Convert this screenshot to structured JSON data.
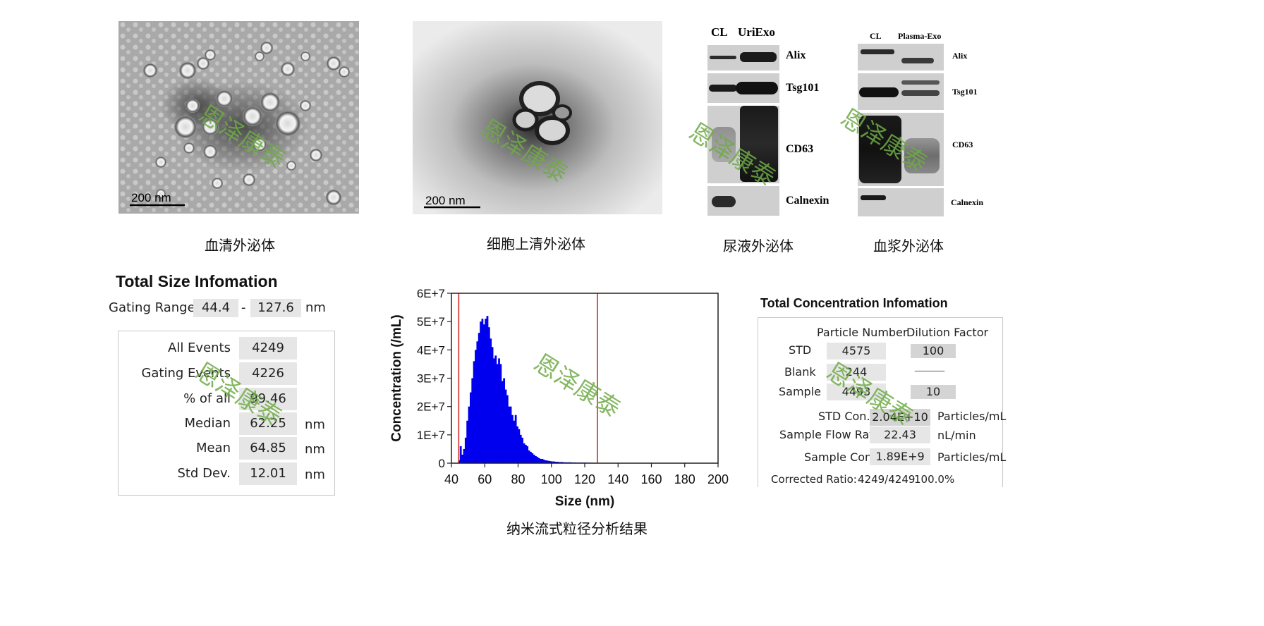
{
  "captions": {
    "serum": "血清外泌体",
    "cell": "细胞上清外泌体",
    "urine": "尿液外泌体",
    "plasma": "血浆外泌体",
    "nta": "纳米流式粒径分析结果"
  },
  "tem": {
    "scale_label_1": "200 nm",
    "scale_label_2": "200 nm"
  },
  "wb_urine": {
    "lanes": [
      "CL",
      "UriExo"
    ],
    "markers": [
      "Alix",
      "Tsg101",
      "CD63",
      "Calnexin"
    ]
  },
  "wb_plasma": {
    "lanes": [
      "CL",
      "Plasma-Exo"
    ],
    "markers": [
      "Alix",
      "Tsg101",
      "CD63",
      "Calnexin"
    ]
  },
  "watermark": "恩泽康泰",
  "size_info": {
    "title": "Total Size Infomation",
    "gating_label": "Gating Range",
    "gating_low": "44.4",
    "gating_dash": "-",
    "gating_high": "127.6",
    "gating_unit": "nm",
    "rows": [
      {
        "label": "All  Events",
        "value": "4249",
        "unit": ""
      },
      {
        "label": "Gating Events",
        "value": "4226",
        "unit": ""
      },
      {
        "label": "% of all",
        "value": "99.46",
        "unit": ""
      },
      {
        "label": "Median",
        "value": "62.25",
        "unit": "nm"
      },
      {
        "label": "Mean",
        "value": "64.85",
        "unit": "nm"
      },
      {
        "label": "Std Dev.",
        "value": "12.01",
        "unit": "nm"
      }
    ]
  },
  "conc_info": {
    "title": "Total Concentration Infomation",
    "col_particle": "Particle Number",
    "col_dilution": "Dilution Factor",
    "rows": [
      {
        "label": "STD",
        "particle": "4575",
        "dilution": "100"
      },
      {
        "label": "Blank",
        "particle": "244",
        "dilution": "———"
      },
      {
        "label": "Sample",
        "particle": "4493",
        "dilution": "10"
      }
    ],
    "std_con_label": "STD Con.",
    "std_con_value": "2.04E+10",
    "std_con_unit": "Particles/mL",
    "flow_label": "Sample Flow Rate",
    "flow_value": "22.43",
    "flow_unit": "nL/min",
    "sample_con_label": "Sample Con.",
    "sample_con_value": "1.89E+9",
    "sample_con_unit": "Particles/mL",
    "corrected_label": "Corrected Ratio:",
    "corrected_value": "4249/4249",
    "corrected_pct": "100.0%"
  },
  "chart_data": {
    "type": "bar",
    "xlabel": "Size (nm)",
    "ylabel": "Concentration (/mL)",
    "xlim": [
      40,
      200
    ],
    "ylim": [
      0,
      60000000
    ],
    "xticks": [
      "40",
      "60",
      "80",
      "100",
      "120",
      "140",
      "160",
      "180",
      "200"
    ],
    "yticks": [
      "0",
      "1E+7",
      "2E+7",
      "3E+7",
      "4E+7",
      "5E+7",
      "6E+7"
    ],
    "gating_lines": [
      44.4,
      127.6
    ],
    "bin_width": 1,
    "bin_start": 44,
    "values": [
      1000000,
      6000000,
      3000000,
      5000000,
      9000000,
      15000000,
      20000000,
      25000000,
      30000000,
      36000000,
      40000000,
      43000000,
      46000000,
      50000000,
      51000000,
      49000000,
      51000000,
      52000000,
      48000000,
      44000000,
      41000000,
      37000000,
      38000000,
      35000000,
      37000000,
      35000000,
      29000000,
      30000000,
      26000000,
      24000000,
      20000000,
      20000000,
      17000000,
      15000000,
      17000000,
      13000000,
      12000000,
      10000000,
      9000000,
      7000000,
      6500000,
      6000000,
      4500000,
      4000000,
      3500000,
      3000000,
      2500000,
      2200000,
      1800000,
      1500000,
      1500000,
      1200000,
      1000000,
      900000,
      800000,
      700000,
      600000,
      600000,
      500000,
      500000,
      400000,
      400000,
      400000,
      300000,
      300000,
      300000,
      300000,
      300000,
      250000,
      250000,
      250000,
      200000,
      200000,
      200000,
      200000,
      200000,
      200000,
      200000,
      150000,
      150000,
      150000,
      150000
    ],
    "tail_value": 120000,
    "tail_end": 200,
    "bar_color": "#0000ee",
    "gate_color": "#d0201a"
  }
}
